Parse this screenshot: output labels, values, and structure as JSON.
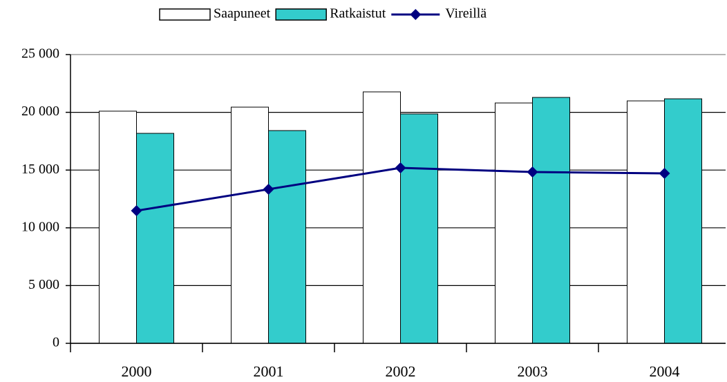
{
  "chart_data": {
    "type": "bar",
    "categories": [
      "2000",
      "2001",
      "2002",
      "2003",
      "2004"
    ],
    "series": [
      {
        "name": "Saapuneet",
        "type": "bar",
        "color": "#ffffff",
        "values": [
          20100,
          20450,
          21770,
          20810,
          20990
        ]
      },
      {
        "name": "Ratkaistut",
        "type": "bar",
        "color": "#33cccc",
        "values": [
          18180,
          18420,
          19860,
          21290,
          21170
        ]
      },
      {
        "name": "Vireillä",
        "type": "line",
        "color": "#000080",
        "values": [
          11480,
          13340,
          15190,
          14830,
          14710
        ]
      }
    ],
    "ylim": [
      0,
      25000
    ],
    "yticks": [
      0,
      {
        "value": 5000,
        "label": "5 000"
      },
      {
        "value": 10000,
        "label": "10 000"
      },
      {
        "value": 15000,
        "label": "15 000"
      },
      {
        "value": 20000,
        "label": "20 000"
      },
      {
        "value": 25000,
        "label": "25 000"
      }
    ],
    "grid": true,
    "legend": "top"
  }
}
